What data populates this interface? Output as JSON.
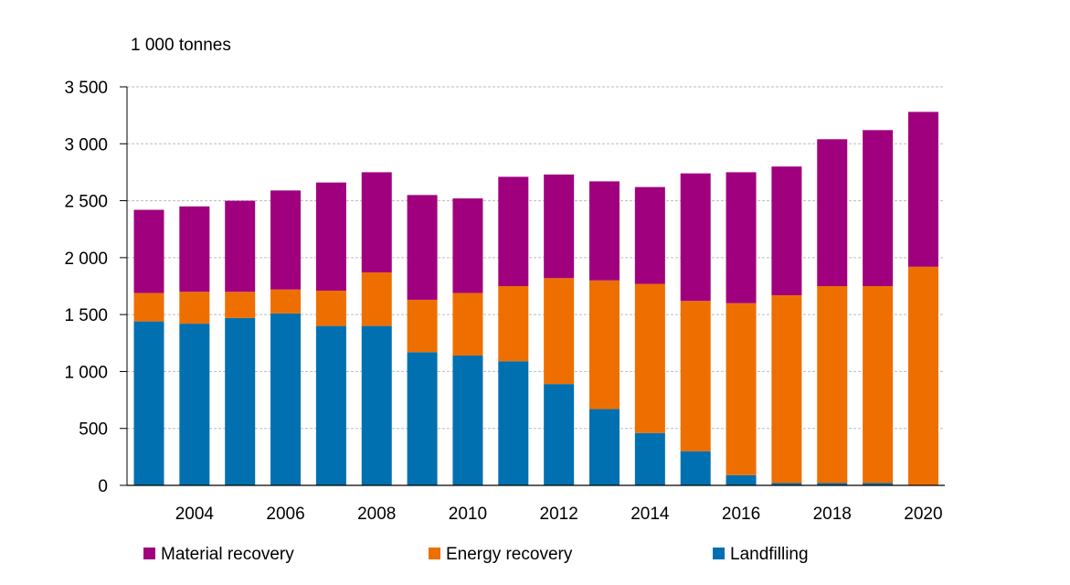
{
  "chart_data": {
    "type": "bar",
    "stacked": true,
    "unit_label": "1 000 tonnes",
    "title": "",
    "xlabel": "",
    "ylabel": "",
    "ylim": [
      0,
      3500
    ],
    "y_ticks": [
      0,
      500,
      1000,
      1500,
      2000,
      2500,
      3000,
      3500
    ],
    "y_tick_labels": [
      "0",
      "500",
      "1 000",
      "1 500",
      "2 000",
      "2 500",
      "3 000",
      "3 500"
    ],
    "categories": [
      2003,
      2004,
      2005,
      2006,
      2007,
      2008,
      2009,
      2010,
      2011,
      2012,
      2013,
      2014,
      2015,
      2016,
      2017,
      2018,
      2019,
      2020
    ],
    "x_tick_labels": [
      "2004",
      "2006",
      "2008",
      "2010",
      "2012",
      "2014",
      "2016",
      "2018",
      "2020"
    ],
    "grid": "horizontal dashed",
    "legend_position": "bottom",
    "series": [
      {
        "name": "Landfilling",
        "color": "#0070b0",
        "values": [
          1440,
          1420,
          1470,
          1510,
          1400,
          1400,
          1170,
          1140,
          1090,
          890,
          670,
          460,
          300,
          90,
          20,
          20,
          20,
          0
        ]
      },
      {
        "name": "Energy recovery",
        "color": "#ee6f00",
        "values": [
          250,
          280,
          230,
          210,
          310,
          470,
          460,
          550,
          660,
          930,
          1130,
          1310,
          1320,
          1510,
          1650,
          1730,
          1730,
          1920
        ]
      },
      {
        "name": "Material recovery",
        "color": "#a0007e",
        "values": [
          730,
          750,
          800,
          870,
          950,
          880,
          920,
          830,
          960,
          910,
          870,
          850,
          1120,
          1150,
          1130,
          1290,
          1370,
          1360
        ]
      }
    ],
    "legend": [
      {
        "label": "Material recovery",
        "color": "#a0007e"
      },
      {
        "label": "Energy recovery",
        "color": "#ee6f00"
      },
      {
        "label": "Landfilling",
        "color": "#0070b0"
      }
    ]
  }
}
